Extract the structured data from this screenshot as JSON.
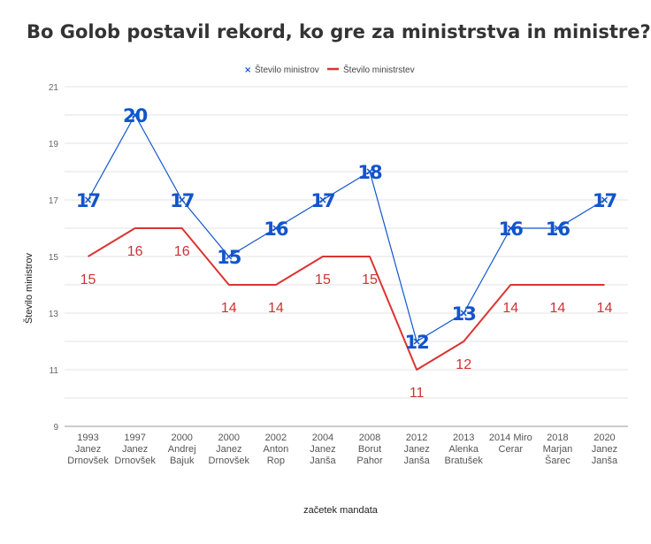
{
  "chart_data": {
    "type": "line",
    "title": "Bo Golob postavil rekord, ko gre za ministrstva in ministre?",
    "xlabel": "začetek mandata",
    "ylabel": "Število ministrov",
    "ylim": [
      9,
      21
    ],
    "yticks": [
      "9",
      "11",
      "13",
      "15",
      "17",
      "19",
      "21"
    ],
    "grid": true,
    "legend_position": "top",
    "categories": [
      [
        "1993",
        "Janez",
        "Drnovšek"
      ],
      [
        "1997",
        "Janez",
        "Drnovšek"
      ],
      [
        "2000",
        "Andrej",
        "Bajuk"
      ],
      [
        "2000",
        "Janez",
        "Drnovšek"
      ],
      [
        "2002",
        "Anton",
        "Rop"
      ],
      [
        "2004",
        "Janez",
        "Janša"
      ],
      [
        "2008",
        "Borut",
        "Pahor"
      ],
      [
        "2012",
        "Janez",
        "Janša"
      ],
      [
        "2013",
        "Alenka",
        "Bratušek"
      ],
      [
        "2014 Miro",
        "Cerar"
      ],
      [
        "2018",
        "Marjan",
        "Šarec"
      ],
      [
        "2020",
        "Janez",
        "Janša"
      ]
    ],
    "series": [
      {
        "name": "Število ministrov",
        "color": "#1155cc",
        "marker": "x",
        "values": [
          17,
          20,
          17,
          15,
          16,
          17,
          18,
          12,
          13,
          16,
          16,
          17
        ]
      },
      {
        "name": "Število ministrstev",
        "color": "#dd3333",
        "marker": "line",
        "values": [
          15,
          16,
          16,
          14,
          14,
          15,
          15,
          11,
          12,
          14,
          14,
          14
        ]
      }
    ]
  }
}
